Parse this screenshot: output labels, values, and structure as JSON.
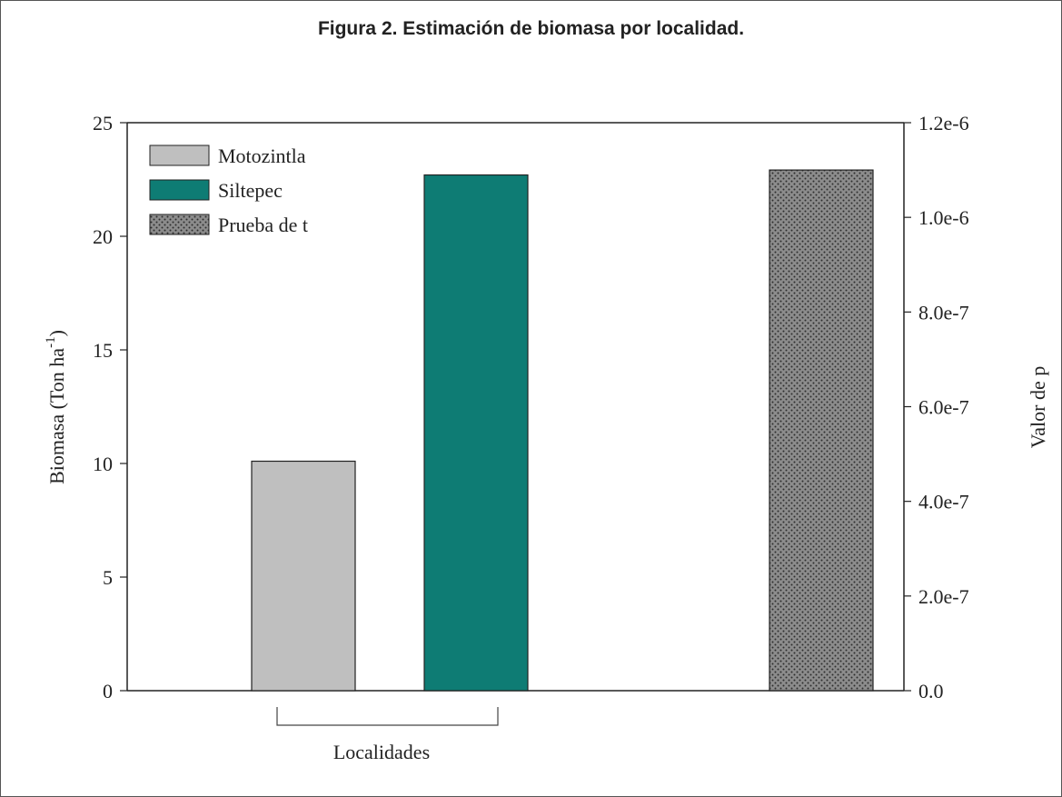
{
  "figure": {
    "caption": "Figura 2. Estimación de biomasa por localidad."
  },
  "chart_data": {
    "type": "bar",
    "left_axis": {
      "label": "Biomasa (Ton ha",
      "label_sup": "-1",
      "label_close": ")",
      "ylim": [
        0,
        25
      ],
      "ticks": [
        "0",
        "5",
        "10",
        "15",
        "20",
        "25"
      ]
    },
    "right_axis": {
      "label": "Valor de p",
      "ylim": [
        0,
        1.2e-06
      ],
      "ticks": [
        "0.0",
        "2.0e-7",
        "4.0e-7",
        "6.0e-7",
        "8.0e-7",
        "1.0e-6",
        "1.2e-6"
      ]
    },
    "xlabel": "Localidades",
    "series": [
      {
        "name": "Motozintla",
        "value": 10.1,
        "axis": "left",
        "color": "#bfbfbf",
        "pattern": "solid"
      },
      {
        "name": "Siltepec",
        "value": 22.7,
        "axis": "left",
        "color": "#0e7c74",
        "pattern": "solid"
      },
      {
        "name": "Prueba de t",
        "value": 1.1e-06,
        "axis": "right",
        "color": "#8c8c8c",
        "pattern": "dots"
      }
    ],
    "legend_position": "top-left",
    "grid": false
  }
}
